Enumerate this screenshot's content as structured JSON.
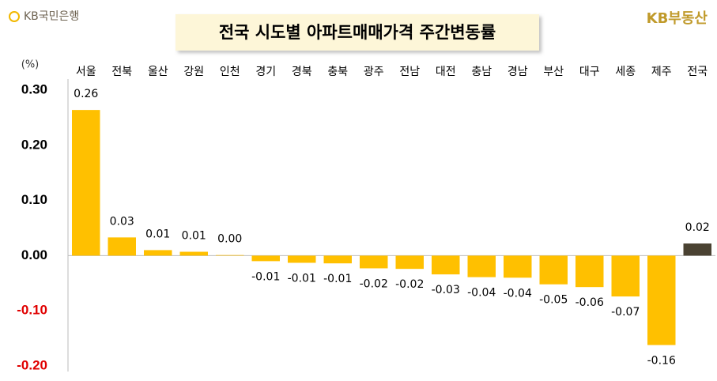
{
  "chart_data": {
    "type": "bar",
    "title": "전국 시도별 아파트매매가격 주간변동률",
    "logo_left": "KB국민은행",
    "logo_right": "KB부동산",
    "unit": "(%)",
    "categories": [
      "서울",
      "전북",
      "울산",
      "강원",
      "인천",
      "경기",
      "경북",
      "충북",
      "광주",
      "전남",
      "대전",
      "충남",
      "경남",
      "부산",
      "대구",
      "세종",
      "제주",
      "전국"
    ],
    "values": [
      0.264,
      0.033,
      0.01,
      0.007,
      0.001,
      -0.01,
      -0.013,
      -0.014,
      -0.023,
      -0.024,
      -0.034,
      -0.039,
      -0.04,
      -0.052,
      -0.057,
      -0.074,
      -0.162,
      0.022
    ],
    "value_labels": [
      "0.26",
      "0.03",
      "0.01",
      "0.01",
      "0.00",
      "-0.01",
      "-0.01",
      "-0.01",
      "-0.02",
      "-0.02",
      "-0.03",
      "-0.04",
      "-0.04",
      "-0.05",
      "-0.06",
      "-0.07",
      "-0.16",
      "0.02"
    ],
    "colors": [
      "#ffc000",
      "#ffc000",
      "#ffc000",
      "#ffc000",
      "#ffc000",
      "#ffc000",
      "#ffc000",
      "#ffc000",
      "#ffc000",
      "#ffc000",
      "#ffc000",
      "#ffc000",
      "#ffc000",
      "#ffc000",
      "#ffc000",
      "#ffc000",
      "#ffc000",
      "#4a4232"
    ],
    "ylim": [
      -0.2,
      0.3
    ],
    "yticks": [
      {
        "value": -0.2,
        "label": "-0.20"
      },
      {
        "value": -0.1,
        "label": "-0.10"
      },
      {
        "value": 0,
        "label": "0.00"
      },
      {
        "value": 0.1,
        "label": "0.10"
      },
      {
        "value": 0.2,
        "label": "0.20"
      },
      {
        "value": 0.3,
        "label": "0.30"
      }
    ],
    "negative_tick_color": "#e00000",
    "tick_color": "#000000",
    "grid": false
  }
}
